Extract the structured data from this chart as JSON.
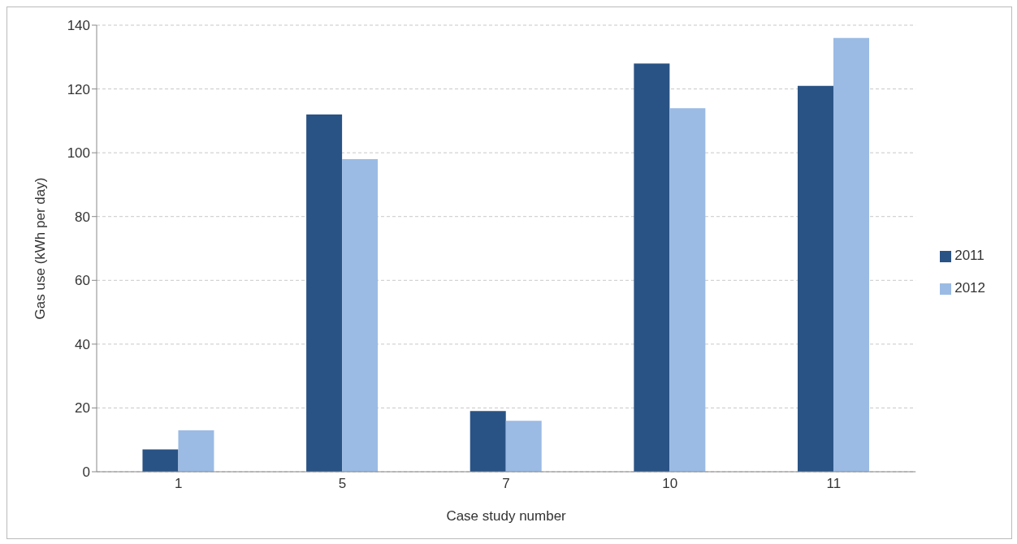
{
  "chart_data": {
    "type": "bar",
    "xlabel": "Case study number",
    "ylabel": "Gas use (kWh per day)",
    "categories": [
      "1",
      "5",
      "7",
      "10",
      "11"
    ],
    "series": [
      {
        "name": "2011",
        "color": "#2a5385",
        "values": [
          7,
          112,
          19,
          128,
          121
        ]
      },
      {
        "name": "2012",
        "color": "#9bbbe4",
        "values": [
          13,
          98,
          16,
          114,
          136
        ]
      }
    ],
    "ylim": [
      0,
      140
    ],
    "yticks": [
      0,
      20,
      40,
      60,
      80,
      100,
      120,
      140
    ],
    "grid": "y",
    "legend": "right"
  }
}
